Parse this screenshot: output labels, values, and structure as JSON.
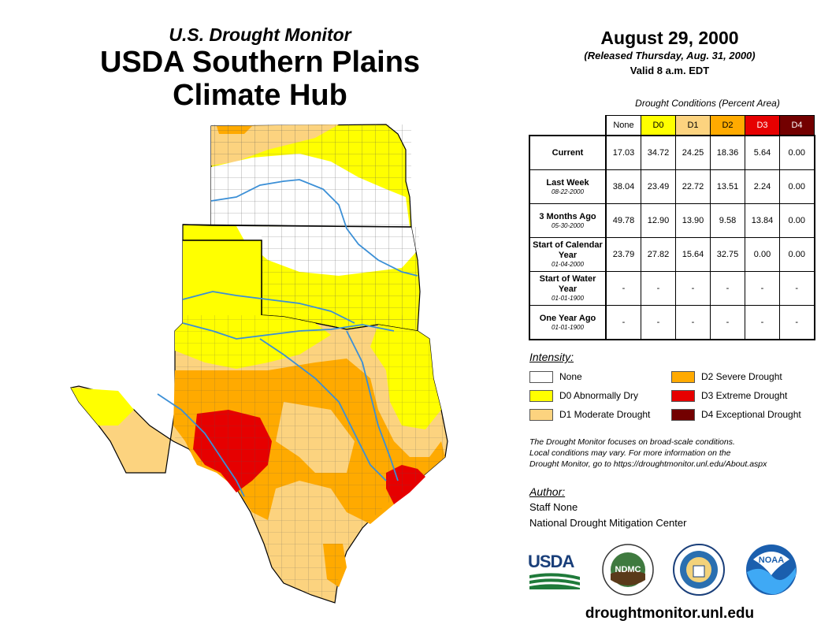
{
  "header": {
    "subtitle": "U.S. Drought Monitor",
    "title_line1": "USDA Southern Plains",
    "title_line2": "Climate Hub"
  },
  "report": {
    "date": "August 29, 2000",
    "released": "(Released Thursday, Aug. 31, 2000)",
    "valid": "Valid 8 a.m. EDT"
  },
  "table": {
    "caption": "Drought Conditions (Percent Area)",
    "columns": [
      {
        "label": "None",
        "color": "#ffffff",
        "text_color": "#000000"
      },
      {
        "label": "D0",
        "color": "#ffff00",
        "text_color": "#000000"
      },
      {
        "label": "D1",
        "color": "#fcd37f",
        "text_color": "#000000"
      },
      {
        "label": "D2",
        "color": "#ffaa00",
        "text_color": "#000000"
      },
      {
        "label": "D3",
        "color": "#e60000",
        "text_color": "#ffffff"
      },
      {
        "label": "D4",
        "color": "#730000",
        "text_color": "#ffffff"
      }
    ],
    "rows": [
      {
        "label": "Current",
        "date": "",
        "values": [
          "17.03",
          "34.72",
          "24.25",
          "18.36",
          "5.64",
          "0.00"
        ]
      },
      {
        "label": "Last Week",
        "date": "08-22-2000",
        "values": [
          "38.04",
          "23.49",
          "22.72",
          "13.51",
          "2.24",
          "0.00"
        ]
      },
      {
        "label": "3 Months Ago",
        "date": "05-30-2000",
        "values": [
          "49.78",
          "12.90",
          "13.90",
          "9.58",
          "13.84",
          "0.00"
        ]
      },
      {
        "label": "Start of Calendar Year",
        "date": "01-04-2000",
        "values": [
          "23.79",
          "27.82",
          "15.64",
          "32.75",
          "0.00",
          "0.00"
        ]
      },
      {
        "label": "Start of Water Year",
        "date": "01-01-1900",
        "values": [
          "-",
          "-",
          "-",
          "-",
          "-",
          "-"
        ]
      },
      {
        "label": "One Year Ago",
        "date": "01-01-1900",
        "values": [
          "-",
          "-",
          "-",
          "-",
          "-",
          "-"
        ]
      }
    ]
  },
  "legend": {
    "title": "Intensity:",
    "items": [
      {
        "label": "None",
        "color": "#ffffff"
      },
      {
        "label": "D2 Severe Drought",
        "color": "#ffaa00"
      },
      {
        "label": "D0 Abnormally Dry",
        "color": "#ffff00"
      },
      {
        "label": "D3 Extreme Drought",
        "color": "#e60000"
      },
      {
        "label": "D1 Moderate Drought",
        "color": "#fcd37f"
      },
      {
        "label": "D4 Exceptional Drought",
        "color": "#730000"
      }
    ]
  },
  "note": {
    "line1": "The Drought Monitor focuses on broad-scale conditions.",
    "line2": "Local conditions may vary. For more information on the",
    "line3": "Drought Monitor, go to https://droughtmonitor.unl.edu/About.aspx"
  },
  "author": {
    "title": "Author:",
    "name": "Staff None",
    "org": "National Drought Mitigation Center"
  },
  "logos": {
    "usda": "USDA",
    "ndmc": "NDMC",
    "noaa": "NOAA"
  },
  "footer": {
    "url": "droughtmonitor.unl.edu"
  },
  "colors": {
    "river": "#3b8fd6",
    "county_line": "#555555",
    "state_line": "#000000"
  }
}
